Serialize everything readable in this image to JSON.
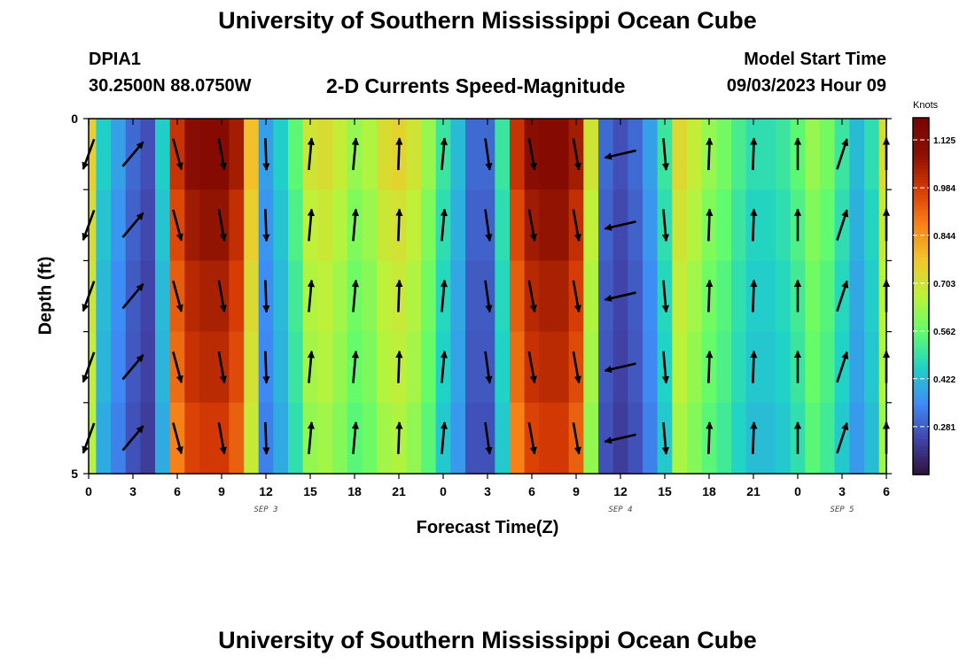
{
  "header": {
    "title": "University of Southern Mississippi Ocean Cube",
    "station": "DPIA1",
    "coordinates": "30.2500N  88.0750W",
    "subtitle": "2-D Currents Speed-Magnitude",
    "model_start_label": "Model Start Time",
    "model_start_value": "09/03/2023 Hour 09"
  },
  "footer": {
    "title": "University of Southern Mississippi Ocean Cube"
  },
  "colors": {
    "stops": [
      "#30123b",
      "#4145ab",
      "#3e8cf6",
      "#1fd3c6",
      "#62fc6b",
      "#bcf33a",
      "#f2c62b",
      "#f98318",
      "#d63a04",
      "#8a0f02",
      "#7a0403"
    ]
  },
  "chart_data": {
    "type": "heatmap",
    "title": "2-D Currents Speed-Magnitude",
    "xlabel": "Forecast Time(Z)",
    "ylabel": "Depth (ft)",
    "colorbar_label": "Knots",
    "x_hours": [
      0,
      1,
      2,
      3,
      4,
      5,
      6,
      7,
      8,
      9,
      10,
      11,
      12,
      13,
      14,
      15,
      16,
      17,
      18,
      19,
      20,
      21,
      22,
      23,
      24,
      25,
      26,
      27,
      28,
      29,
      30,
      31,
      32,
      33,
      34,
      35,
      36,
      37,
      38,
      39,
      40,
      41,
      42,
      43,
      44,
      45,
      46,
      47,
      48,
      49,
      50,
      51,
      52,
      53,
      54
    ],
    "x_tick_hours": [
      0,
      3,
      6,
      9,
      12,
      15,
      18,
      21,
      24,
      27,
      30,
      33,
      36,
      39,
      42,
      45,
      48,
      51,
      54
    ],
    "x_tick_labels": [
      "0",
      "3",
      "6",
      "9",
      "12",
      "15",
      "18",
      "21",
      "0",
      "3",
      "6",
      "9",
      "12",
      "15",
      "18",
      "21",
      "0",
      "3",
      "6"
    ],
    "date_labels": [
      {
        "hour": 12,
        "text": "SEP 3"
      },
      {
        "hour": 36,
        "text": "SEP 4"
      },
      {
        "hour": 51,
        "text": "SEP 5"
      }
    ],
    "ylim": [
      0,
      5
    ],
    "y_tick_labels": [
      "0",
      "5"
    ],
    "depth_levels": 5,
    "speed_knots": [
      0.75,
      0.45,
      0.38,
      0.3,
      0.26,
      0.45,
      1.0,
      1.1,
      1.12,
      1.12,
      1.05,
      0.78,
      0.38,
      0.45,
      0.55,
      0.7,
      0.72,
      0.68,
      0.62,
      0.65,
      0.72,
      0.74,
      0.7,
      0.62,
      0.5,
      0.42,
      0.3,
      0.3,
      0.5,
      1.0,
      1.1,
      1.12,
      1.12,
      1.05,
      0.7,
      0.3,
      0.26,
      0.3,
      0.38,
      0.5,
      0.73,
      0.68,
      0.62,
      0.58,
      0.52,
      0.48,
      0.48,
      0.5,
      0.55,
      0.62,
      0.58,
      0.5,
      0.42,
      0.48,
      0.72
    ],
    "depth_factors": [
      1.0,
      0.96,
      0.93,
      0.91,
      0.88
    ],
    "vector_hours": [
      0,
      3,
      6,
      9,
      12,
      15,
      18,
      21,
      24,
      27,
      30,
      33,
      36,
      39,
      42,
      45,
      48,
      51,
      54
    ],
    "vector_direction_deg": [
      200,
      40,
      165,
      170,
      178,
      5,
      5,
      2,
      5,
      172,
      170,
      170,
      257,
      175,
      2,
      2,
      0,
      18,
      0
    ],
    "colorbar": {
      "min": 0.14,
      "max": 1.19,
      "ticks": [
        1.125,
        0.984,
        0.844,
        0.703,
        0.562,
        0.422,
        0.281
      ],
      "tick_labels": [
        "1.125",
        "0.984",
        "0.844",
        "0.703",
        "0.562",
        "0.422",
        "0.281"
      ]
    }
  }
}
